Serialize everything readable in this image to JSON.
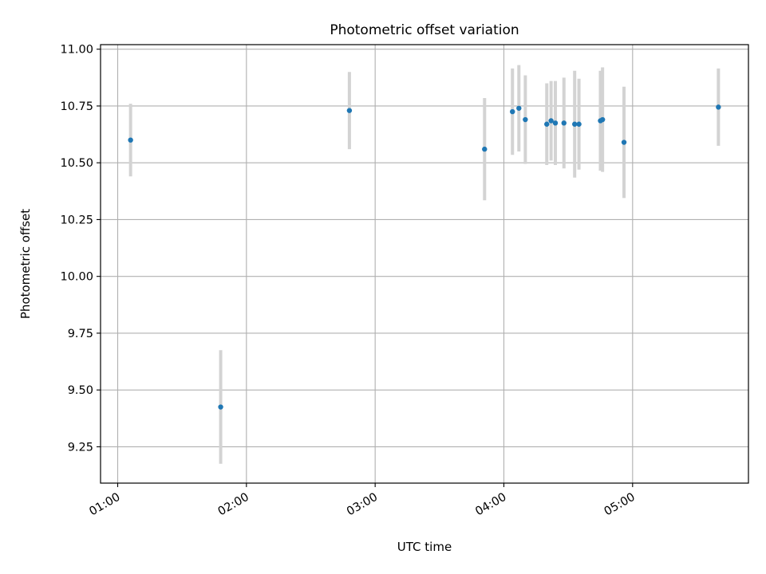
{
  "chart_data": {
    "type": "scatter",
    "title": "Photometric offset variation",
    "xlabel": "UTC time",
    "ylabel": "Photometric offset",
    "x_axis_type": "time",
    "xlim": [
      "00:52",
      "05:54"
    ],
    "ylim": [
      9.09,
      11.02
    ],
    "x_ticks": [
      "01:00",
      "02:00",
      "03:00",
      "04:00",
      "05:00"
    ],
    "y_ticks": [
      9.25,
      9.5,
      9.75,
      10.0,
      10.25,
      10.5,
      10.75,
      11.0
    ],
    "y_tick_labels": [
      "9.25",
      "9.50",
      "9.75",
      "10.00",
      "10.25",
      "10.50",
      "10.75",
      "11.00"
    ],
    "x_tick_rotation_deg": 30,
    "grid": true,
    "marker_color": "#1f77b4",
    "errorbar_color": "#d3d3d3",
    "points": [
      {
        "time": "01:06",
        "y": 10.6,
        "err": 0.16
      },
      {
        "time": "01:48",
        "y": 9.425,
        "err": 0.25
      },
      {
        "time": "02:48",
        "y": 10.73,
        "err": 0.17
      },
      {
        "time": "03:51",
        "y": 10.56,
        "err": 0.225
      },
      {
        "time": "04:04",
        "y": 10.725,
        "err": 0.19
      },
      {
        "time": "04:07",
        "y": 10.74,
        "err": 0.19
      },
      {
        "time": "04:10",
        "y": 10.69,
        "err": 0.195
      },
      {
        "time": "04:20",
        "y": 10.67,
        "err": 0.18
      },
      {
        "time": "04:22",
        "y": 10.685,
        "err": 0.175
      },
      {
        "time": "04:24",
        "y": 10.675,
        "err": 0.185
      },
      {
        "time": "04:28",
        "y": 10.675,
        "err": 0.2
      },
      {
        "time": "04:33",
        "y": 10.67,
        "err": 0.235
      },
      {
        "time": "04:35",
        "y": 10.67,
        "err": 0.2
      },
      {
        "time": "04:45",
        "y": 10.685,
        "err": 0.22
      },
      {
        "time": "04:46",
        "y": 10.69,
        "err": 0.23
      },
      {
        "time": "04:56",
        "y": 10.59,
        "err": 0.245
      },
      {
        "time": "05:40",
        "y": 10.745,
        "err": 0.17
      }
    ]
  }
}
